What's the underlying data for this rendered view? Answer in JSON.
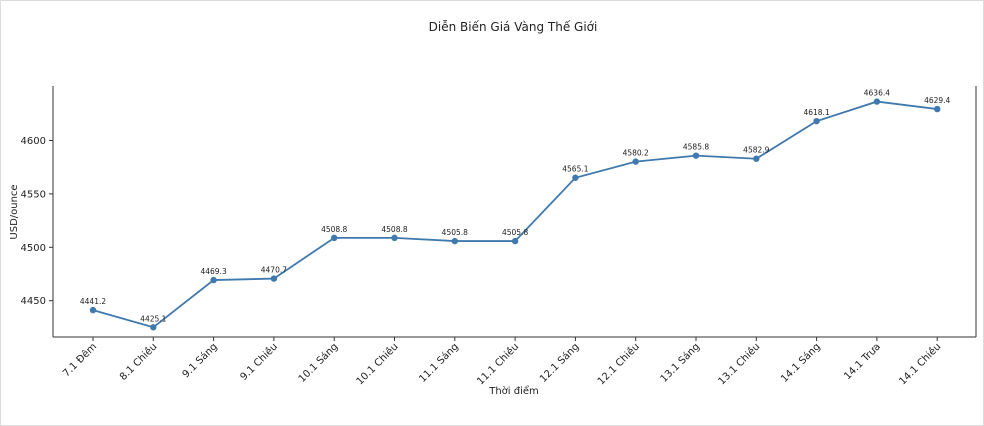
{
  "chart_data": {
    "type": "line",
    "title": "Diễn Biến Giá Vàng Thế Giới",
    "xlabel": "Thời điểm",
    "ylabel": "USD/ounce",
    "categories": [
      "7.1 Đêm",
      "8.1 Chiều",
      "9.1 Sáng",
      "9.1 Chiều",
      "10.1 Sáng",
      "10.1 Chiều",
      "11.1 Sáng",
      "11.1 Chiều",
      "12.1 Sáng",
      "12.1 Chiều",
      "13.1 Sáng",
      "13.1 Chiều",
      "14.1 Sáng",
      "14.1 Trưa",
      "14.1 Chiều"
    ],
    "series": [
      {
        "values": [
          4441.2,
          4425.1,
          4469.3,
          4470.7,
          4508.8,
          4508.8,
          4505.8,
          4505.8,
          4565.1,
          4580.2,
          4585.8,
          4582.9,
          4618.1,
          4636.4,
          4629.4
        ],
        "color": "#3f79ad"
      }
    ],
    "data_labels": [
      "4441.2",
      "4425.1",
      "4469.3",
      "4470.7",
      "4508.8",
      "4508.8",
      "4505.8",
      "4505.8",
      "4565.1",
      "4580.2",
      "4585.8",
      "4582.9",
      "4618.1",
      "4636.4",
      "4629.4"
    ],
    "yticks": [
      "4450",
      "4500",
      "4550",
      "4600"
    ],
    "ytick_values": [
      4450,
      4500,
      4550,
      4600
    ],
    "ylim": [
      4416,
      4651
    ],
    "grid": false,
    "legend": "none"
  }
}
